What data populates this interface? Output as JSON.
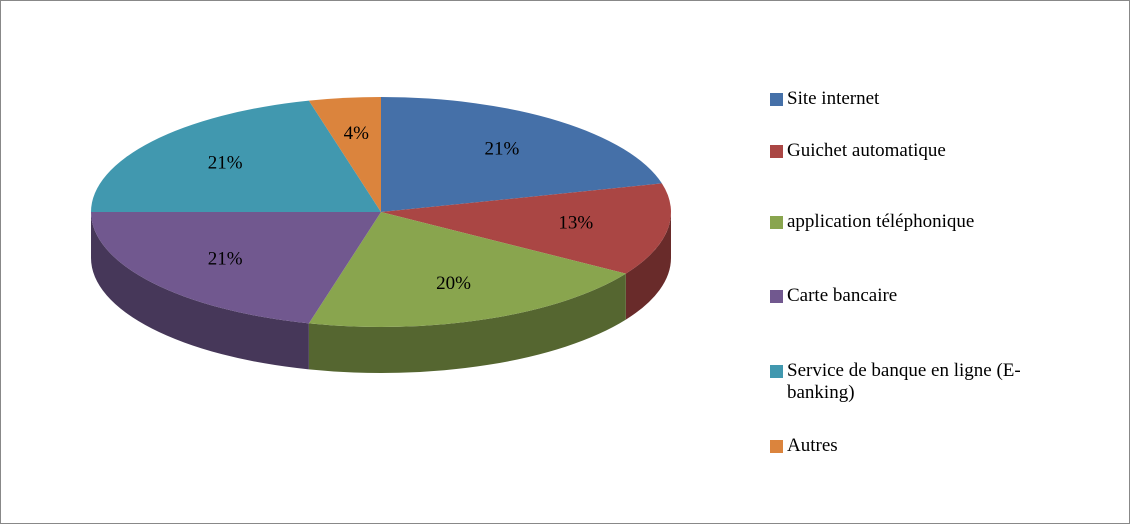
{
  "chart_data": {
    "type": "pie",
    "categories": [
      "Site internet",
      "Guichet automatique",
      "application téléphonique",
      "Carte bancaire",
      "Service de banque en ligne (E-banking)",
      "Autres"
    ],
    "values": [
      21,
      13,
      20,
      21,
      21,
      4
    ],
    "value_labels": [
      "21%",
      "13%",
      "20%",
      "21%",
      "21%",
      "4%"
    ],
    "colors": [
      "#4570a8",
      "#aa4644",
      "#89a54e",
      "#71588f",
      "#4198af",
      "#db843d"
    ],
    "legend": "right"
  }
}
